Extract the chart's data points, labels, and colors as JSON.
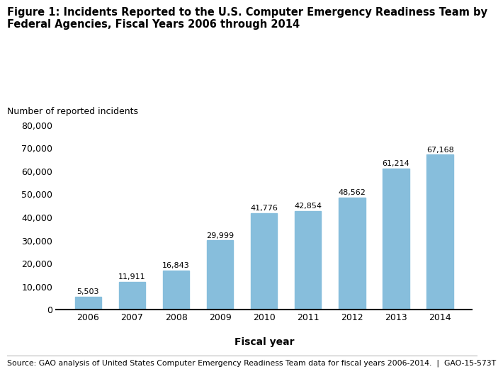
{
  "title_line1": "Figure 1: Incidents Reported to the U.S. Computer Emergency Readiness Team by",
  "title_line2": "Federal Agencies, Fiscal Years 2006 through 2014",
  "ylabel": "Number of reported incidents",
  "xlabel": "Fiscal year",
  "years": [
    "2006",
    "2007",
    "2008",
    "2009",
    "2010",
    "2011",
    "2012",
    "2013",
    "2014"
  ],
  "values": [
    5503,
    11911,
    16843,
    29999,
    41776,
    42854,
    48562,
    61214,
    67168
  ],
  "bar_color": "#87BEDC",
  "bar_edge_color": "#87BEDC",
  "ylim": [
    0,
    80000
  ],
  "yticks": [
    0,
    10000,
    20000,
    30000,
    40000,
    50000,
    60000,
    70000,
    80000
  ],
  "annotation_labels": [
    "5,503",
    "11,911",
    "16,843",
    "29,999",
    "41,776",
    "42,854",
    "48,562",
    "61,214",
    "67,168"
  ],
  "source_text": "Source: GAO analysis of United States Computer Emergency Readiness Team data for fiscal years 2006-2014.  |  GAO-15-573T",
  "bg_color": "#ffffff",
  "label_fontsize": 8.0,
  "axis_tick_fontsize": 9,
  "title_fontsize": 10.5,
  "xlabel_fontsize": 10,
  "ylabel_fontsize": 9,
  "source_fontsize": 7.8
}
